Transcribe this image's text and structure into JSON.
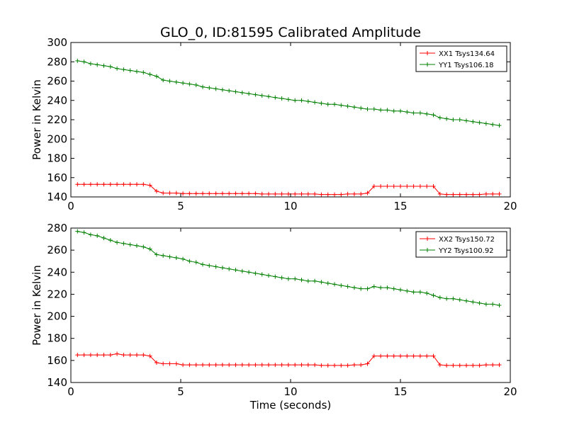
{
  "figure": {
    "title": "GLO_0, ID:81595 Calibrated Amplitude"
  },
  "chart_data": [
    {
      "type": "line",
      "title": "GLO_0, ID:81595 Calibrated Amplitude",
      "xlabel": "",
      "ylabel": "Power in Kelvin",
      "xlim": [
        0,
        20
      ],
      "ylim": [
        140,
        300
      ],
      "xticks": [
        "0",
        "5",
        "10",
        "15",
        "20"
      ],
      "yticks": [
        "140",
        "160",
        "180",
        "200",
        "220",
        "240",
        "260",
        "280",
        "300"
      ],
      "grid": false,
      "legend_position": "top-right",
      "x": [
        0.3,
        0.6,
        0.9,
        1.2,
        1.5,
        1.8,
        2.1,
        2.4,
        2.7,
        3.0,
        3.3,
        3.6,
        3.9,
        4.2,
        4.5,
        4.8,
        5.1,
        5.4,
        5.7,
        6.0,
        6.3,
        6.6,
        6.9,
        7.2,
        7.5,
        7.8,
        8.1,
        8.4,
        8.7,
        9.0,
        9.3,
        9.6,
        9.9,
        10.2,
        10.5,
        10.8,
        11.1,
        11.4,
        11.7,
        12.0,
        12.3,
        12.6,
        12.9,
        13.2,
        13.5,
        13.8,
        14.1,
        14.4,
        14.7,
        15.0,
        15.3,
        15.6,
        15.9,
        16.2,
        16.5,
        16.8,
        17.1,
        17.4,
        17.7,
        18.0,
        18.3,
        18.6,
        18.9,
        19.2,
        19.5
      ],
      "series": [
        {
          "name": "XX1 Tsys134.64",
          "color": "#ff0000",
          "values": [
            153,
            153,
            153,
            153,
            153,
            153,
            153,
            153,
            153,
            153,
            153,
            152,
            146,
            144,
            144,
            144,
            143.5,
            143.5,
            143.5,
            143.5,
            143.5,
            143.5,
            143.5,
            143.5,
            143.5,
            143.5,
            143.5,
            143.5,
            143,
            143,
            143,
            143,
            143,
            143,
            143,
            143,
            143,
            142.5,
            142.5,
            142.5,
            142.5,
            143,
            143,
            143,
            144,
            151,
            151,
            151,
            151,
            151,
            151,
            151,
            151,
            151,
            151,
            143,
            142.5,
            142.5,
            142.5,
            142.5,
            142.5,
            142.5,
            143,
            143,
            143
          ]
        },
        {
          "name": "YY1 Tsys106.18",
          "color": "#008000",
          "values": [
            281,
            280,
            278,
            277,
            276,
            275,
            273,
            272,
            271,
            270,
            269,
            267,
            265,
            261,
            260,
            259,
            258,
            257,
            256,
            254,
            253,
            252,
            251,
            250,
            249,
            248,
            247,
            246,
            245,
            244,
            243,
            242,
            241,
            240,
            240,
            239,
            238,
            237,
            236,
            236,
            235,
            234,
            233,
            232,
            231,
            231,
            230,
            230,
            229,
            229,
            228,
            227,
            227,
            226,
            225,
            222,
            221,
            220,
            220,
            219,
            218,
            217,
            216,
            215,
            214
          ]
        }
      ]
    },
    {
      "type": "line",
      "title": "",
      "xlabel": "Time (seconds)",
      "ylabel": "Power in Kelvin",
      "xlim": [
        0,
        20
      ],
      "ylim": [
        140,
        280
      ],
      "xticks": [
        "0",
        "5",
        "10",
        "15",
        "20"
      ],
      "yticks": [
        "140",
        "160",
        "180",
        "200",
        "220",
        "240",
        "260",
        "280"
      ],
      "grid": false,
      "legend_position": "top-right",
      "x": [
        0.3,
        0.6,
        0.9,
        1.2,
        1.5,
        1.8,
        2.1,
        2.4,
        2.7,
        3.0,
        3.3,
        3.6,
        3.9,
        4.2,
        4.5,
        4.8,
        5.1,
        5.4,
        5.7,
        6.0,
        6.3,
        6.6,
        6.9,
        7.2,
        7.5,
        7.8,
        8.1,
        8.4,
        8.7,
        9.0,
        9.3,
        9.6,
        9.9,
        10.2,
        10.5,
        10.8,
        11.1,
        11.4,
        11.7,
        12.0,
        12.3,
        12.6,
        12.9,
        13.2,
        13.5,
        13.8,
        14.1,
        14.4,
        14.7,
        15.0,
        15.3,
        15.6,
        15.9,
        16.2,
        16.5,
        16.8,
        17.1,
        17.4,
        17.7,
        18.0,
        18.3,
        18.6,
        18.9,
        19.2,
        19.5
      ],
      "series": [
        {
          "name": "XX2 Tsys150.72",
          "color": "#ff0000",
          "values": [
            165,
            165,
            165,
            165,
            165,
            165,
            166,
            165,
            165,
            165,
            165,
            164,
            158,
            157,
            157,
            157,
            156,
            156,
            156,
            156,
            156,
            156,
            156,
            156,
            156,
            156,
            156,
            156,
            156,
            156,
            156,
            156,
            156,
            156,
            156,
            156,
            156,
            155.5,
            155.5,
            155.5,
            155.5,
            155.5,
            156,
            156,
            157,
            164,
            164,
            164,
            164,
            164,
            164,
            164,
            164,
            164,
            164,
            156,
            155.5,
            155.5,
            155.5,
            155.5,
            155.5,
            155.5,
            156,
            156,
            156
          ]
        },
        {
          "name": "YY2 Tsys100.92",
          "color": "#008000",
          "values": [
            277,
            276,
            274,
            273,
            271,
            269,
            267,
            266,
            265,
            264,
            263,
            261,
            256,
            255,
            254,
            253,
            252,
            250,
            249,
            247,
            246,
            245,
            244,
            243,
            242,
            241,
            240,
            239,
            238,
            237,
            236,
            235,
            234,
            234,
            233,
            232,
            232,
            231,
            230,
            229,
            228,
            227,
            226,
            225,
            225,
            227,
            226,
            226,
            225,
            224,
            223,
            222,
            222,
            221,
            219,
            217,
            216,
            216,
            215,
            214,
            213,
            212,
            211,
            211,
            210
          ]
        }
      ]
    }
  ]
}
